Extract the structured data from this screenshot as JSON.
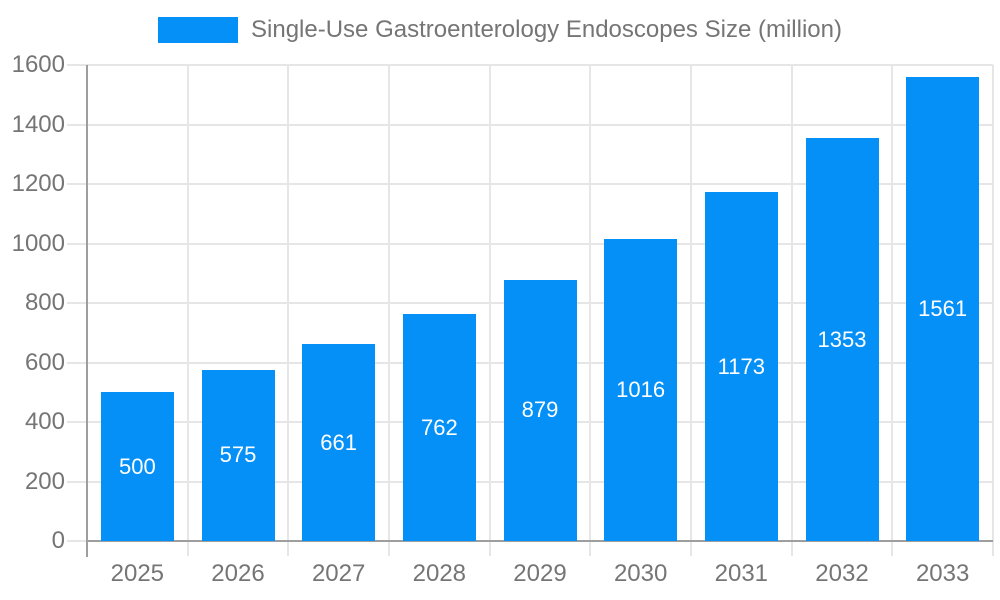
{
  "chart_data": {
    "type": "bar",
    "title": "Single-Use Gastroenterology Endoscopes Size (million)",
    "categories": [
      "2025",
      "2026",
      "2027",
      "2028",
      "2029",
      "2030",
      "2031",
      "2032",
      "2033"
    ],
    "values": [
      500,
      575,
      661,
      762,
      879,
      1016,
      1173,
      1353,
      1561
    ],
    "xlabel": "",
    "ylabel": "",
    "ylim": [
      0,
      1600
    ],
    "ytick_step": 200,
    "ytick_labels": [
      "0",
      "200",
      "400",
      "600",
      "800",
      "1000",
      "1200",
      "1400",
      "1600"
    ],
    "grid": true,
    "legend_position": "top-center",
    "bar_value_labels": "inside-center-white",
    "colors": {
      "bar": "#0590F8",
      "bar_label": "#FFFFFF",
      "axis_line": "#9E9E9E",
      "grid_line": "#E6E6E6",
      "tick_label": "#757575",
      "legend_text": "#757575",
      "background": "#FFFFFF"
    }
  }
}
